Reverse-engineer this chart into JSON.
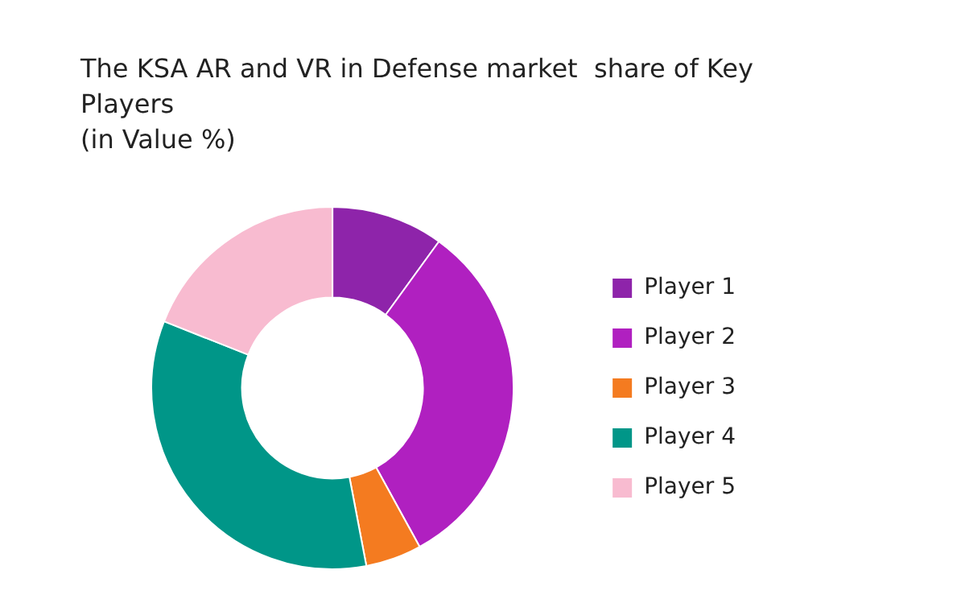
{
  "chart_data": {
    "type": "donut",
    "title": "The KSA AR and VR in Defense market  share of Key Players",
    "subtitle": "(in Value %)",
    "categories": [
      "Player 1",
      "Player 2",
      "Player 3",
      "Player 4",
      "Player 5"
    ],
    "values": [
      10,
      32,
      5,
      34,
      19
    ],
    "colors": [
      "#8e24aa",
      "#b020c0",
      "#f47b20",
      "#009688",
      "#f8bbd0"
    ],
    "legend": "right"
  }
}
